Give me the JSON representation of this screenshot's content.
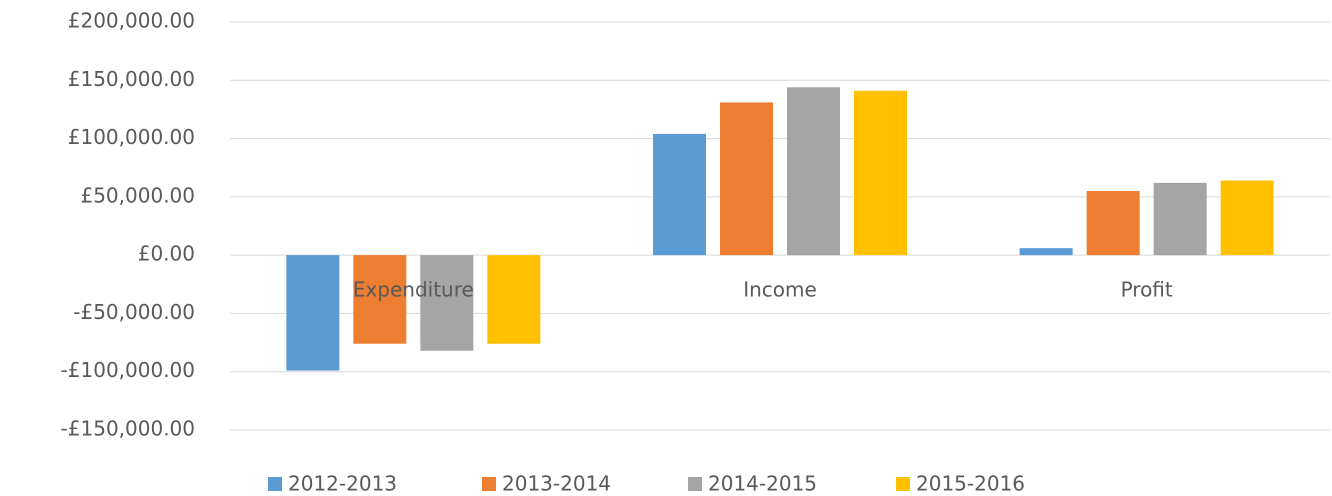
{
  "chart_data": {
    "type": "bar",
    "categories": [
      "Expenditure",
      "Income",
      "Profit"
    ],
    "series": [
      {
        "name": "2012-2013",
        "color": "#5b9bd5",
        "values": [
          -99000,
          104000,
          6000
        ]
      },
      {
        "name": "2013-2014",
        "color": "#ed7d31",
        "values": [
          -76000,
          131000,
          55000
        ]
      },
      {
        "name": "2014-2015",
        "color": "#a5a5a5",
        "values": [
          -82000,
          144000,
          62000
        ]
      },
      {
        "name": "2015-2016",
        "color": "#ffc000",
        "values": [
          -76000,
          141000,
          64000
        ]
      }
    ],
    "ylim": [
      -150000,
      200000
    ],
    "yticks": [
      {
        "value": -150000,
        "label": "-£150,000.00"
      },
      {
        "value": -100000,
        "label": "-£100,000.00"
      },
      {
        "value": -50000,
        "label": "-£50,000.00"
      },
      {
        "value": 0,
        "label": "£0.00"
      },
      {
        "value": 50000,
        "label": "£50,000.00"
      },
      {
        "value": 100000,
        "label": "£100,000.00"
      },
      {
        "value": 150000,
        "label": "£150,000.00"
      },
      {
        "value": 200000,
        "label": "£200,000.00"
      }
    ],
    "grid": true,
    "legend": "bottom"
  }
}
